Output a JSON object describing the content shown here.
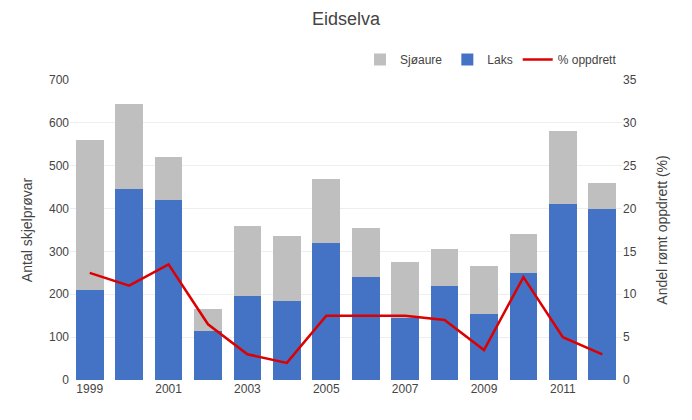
{
  "chart_data": {
    "type": "bar",
    "title": "Eidselva",
    "categories": [
      "1999",
      null,
      "2001",
      null,
      "2003",
      null,
      "2005",
      null,
      "2007",
      null,
      "2009",
      null,
      "2011",
      null
    ],
    "series": [
      {
        "name": "Laks",
        "type": "bar",
        "color": "#4472C4",
        "values": [
          210,
          445,
          420,
          115,
          195,
          185,
          320,
          240,
          145,
          220,
          155,
          250,
          410,
          400
        ]
      },
      {
        "name": "Sjøaure",
        "type": "bar",
        "color": "#BFBFBF",
        "values": [
          350,
          200,
          100,
          50,
          165,
          150,
          150,
          115,
          130,
          85,
          110,
          90,
          170,
          60
        ]
      },
      {
        "name": "% oppdrett",
        "type": "line",
        "axis": "y2",
        "color": "#DD0000",
        "values": [
          12.5,
          11.0,
          13.5,
          6.5,
          3.0,
          2.0,
          7.5,
          7.5,
          7.5,
          7.0,
          3.5,
          12.0,
          5.0,
          3.0
        ]
      }
    ],
    "stacked": true,
    "ylabel": "Antal skjelprøvar",
    "y2label": "Andel rømt oppdrett (%)",
    "ylim": [
      0,
      700
    ],
    "yticks": [
      0,
      100,
      200,
      300,
      400,
      500,
      600,
      700
    ],
    "y2lim": [
      0,
      35
    ],
    "y2ticks": [
      0,
      5,
      10,
      15,
      20,
      25,
      30,
      35
    ],
    "grid": true,
    "legend": "upper right"
  }
}
